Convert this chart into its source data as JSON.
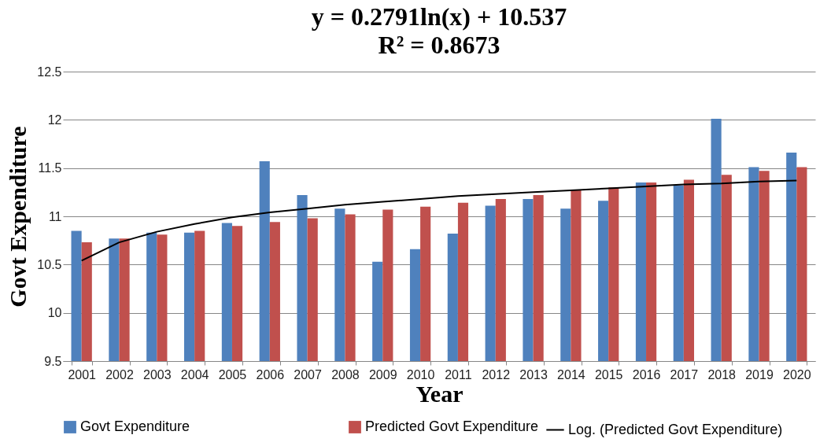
{
  "chart_data": {
    "type": "bar",
    "title": "y = 0.2791ln(x) + 10.537",
    "subtitle": "R² = 0.8673",
    "xlabel": "Year",
    "ylabel": "Govt Expenditure",
    "categories": [
      "2001",
      "2002",
      "2003",
      "2004",
      "2005",
      "2006",
      "2007",
      "2008",
      "2009",
      "2010",
      "2011",
      "2012",
      "2013",
      "2014",
      "2015",
      "2016",
      "2017",
      "2018",
      "2019",
      "2020"
    ],
    "series": [
      {
        "name": "Govt Expenditure",
        "color": "#4f81bd",
        "values": [
          10.85,
          10.77,
          10.83,
          10.83,
          10.93,
          11.57,
          11.22,
          11.08,
          10.53,
          10.66,
          10.82,
          11.11,
          11.18,
          11.08,
          11.16,
          11.35,
          11.32,
          12.01,
          11.51,
          11.66
        ]
      },
      {
        "name": "Predicted Govt Expenditure",
        "color": "#c0504d",
        "values": [
          10.73,
          10.77,
          10.81,
          10.85,
          10.9,
          10.94,
          10.98,
          11.02,
          11.07,
          11.1,
          11.14,
          11.18,
          11.22,
          11.27,
          11.3,
          11.35,
          11.38,
          11.43,
          11.47,
          11.51
        ]
      },
      {
        "name": "Log. (Predicted Govt Expenditure)",
        "type": "line",
        "color": "#000000",
        "values": [
          10.54,
          10.73,
          10.84,
          10.92,
          10.99,
          11.04,
          11.08,
          11.12,
          11.15,
          11.18,
          11.21,
          11.23,
          11.25,
          11.27,
          11.29,
          11.31,
          11.33,
          11.34,
          11.36,
          11.37
        ]
      }
    ],
    "ylim": [
      9.5,
      12.5
    ],
    "yticks": [
      9.5,
      10,
      10.5,
      11,
      11.5,
      12,
      12.5
    ],
    "grid": "y",
    "legend": "bottom",
    "marker": "none",
    "line_style": "solid"
  }
}
